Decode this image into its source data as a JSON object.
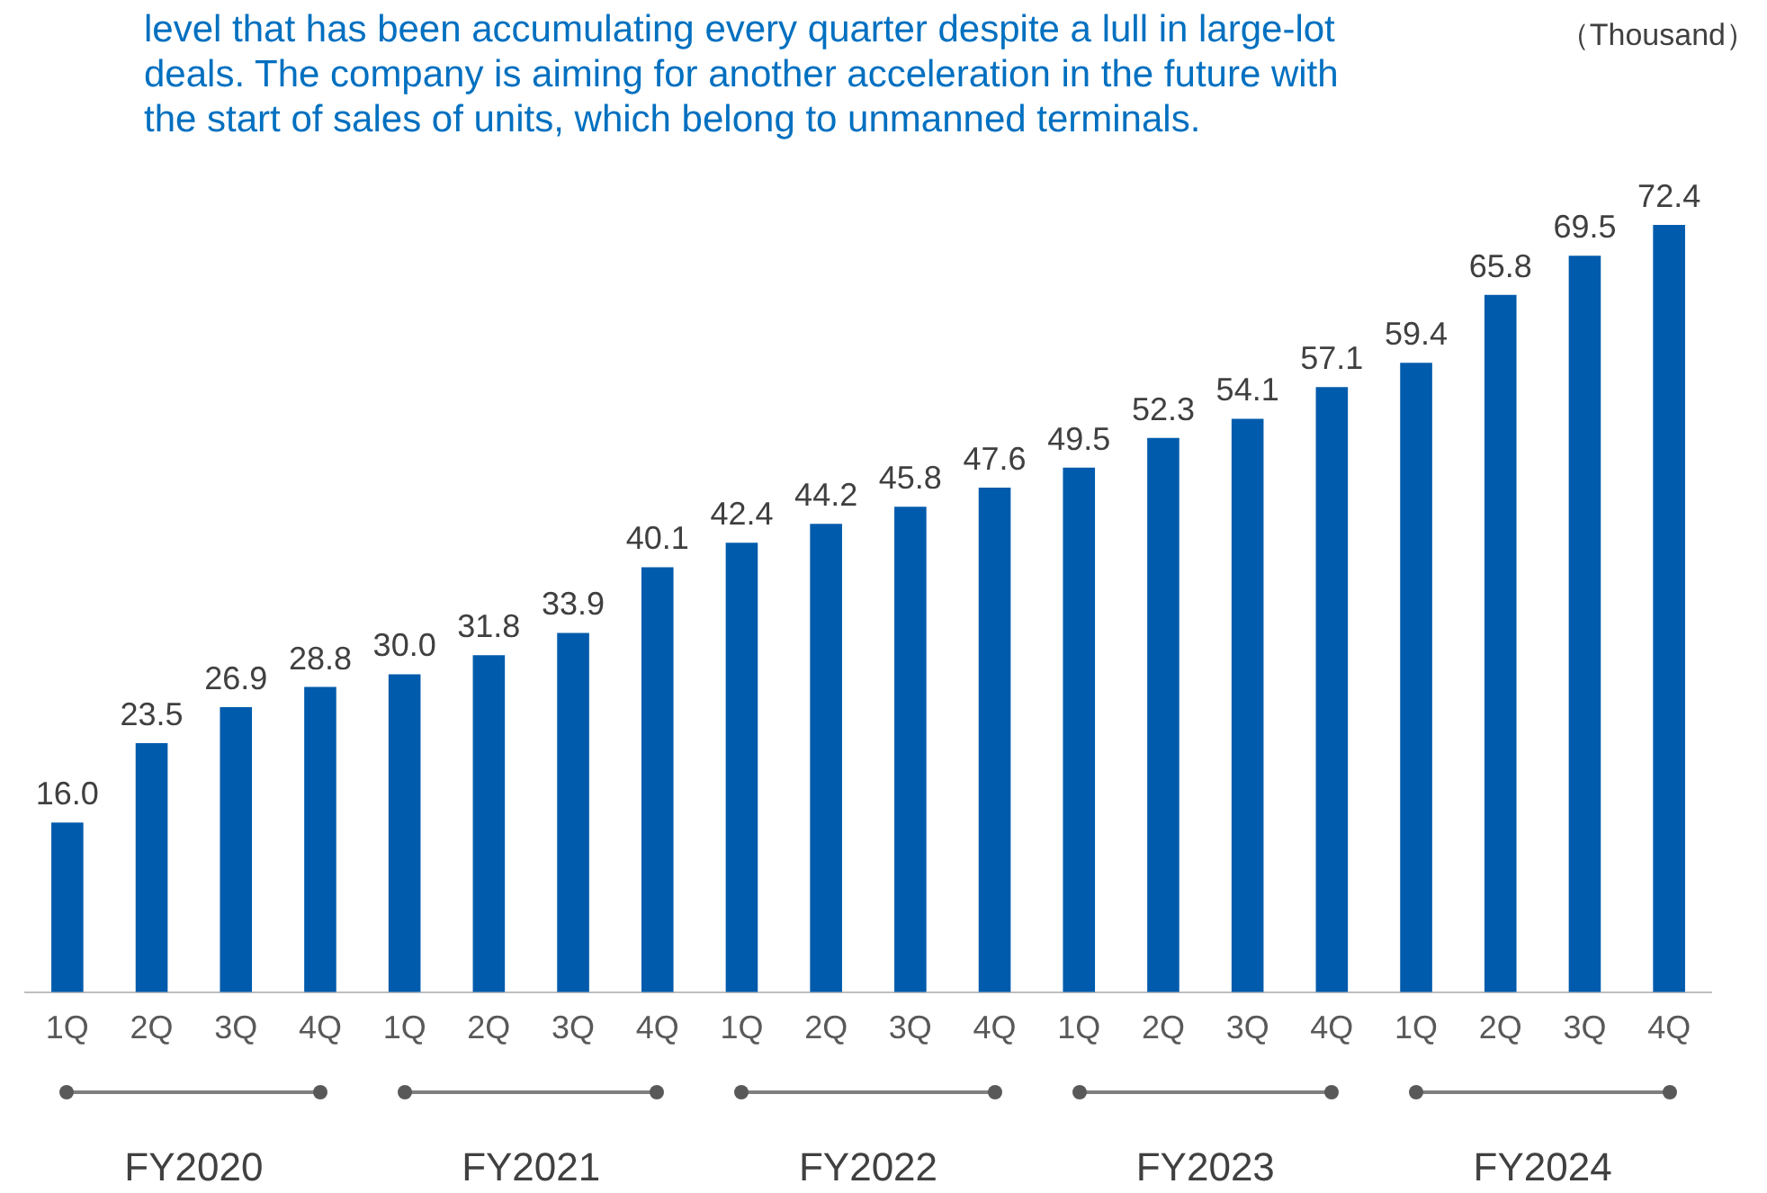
{
  "chart_data": {
    "type": "bar",
    "title": "level that has been accumulating every quarter despite a lull in large-lot deals. The company is aiming for another acceleration in the future with the start of sales of units, which belong to unmanned terminals.",
    "categories": [
      "1Q",
      "2Q",
      "3Q",
      "4Q",
      "1Q",
      "2Q",
      "3Q",
      "4Q",
      "1Q",
      "2Q",
      "3Q",
      "4Q",
      "1Q",
      "2Q",
      "3Q",
      "4Q",
      "1Q",
      "2Q",
      "3Q",
      "4Q"
    ],
    "values": [
      16.0,
      23.5,
      26.9,
      28.8,
      30.0,
      31.8,
      33.9,
      40.1,
      42.4,
      44.2,
      45.8,
      47.6,
      49.5,
      52.3,
      54.1,
      57.1,
      59.4,
      65.8,
      69.5,
      72.4
    ],
    "value_labels": [
      "16.0",
      "23.5",
      "26.9",
      "28.8",
      "30.0",
      "31.8",
      "33.9",
      "40.1",
      "42.4",
      "44.2",
      "45.8",
      "47.6",
      "49.5",
      "52.3",
      "54.1",
      "57.1",
      "59.4",
      "65.8",
      "69.5",
      "72.4"
    ],
    "color": "#005bac",
    "annotations": [
      "（Thousand）",
      "FY2020",
      "FY2021",
      "FY2022",
      "FY2023",
      "FY2024"
    ]
  }
}
